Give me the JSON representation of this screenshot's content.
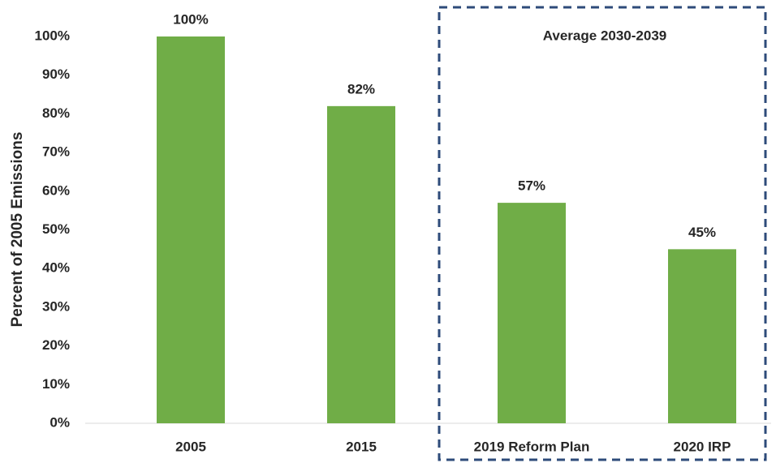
{
  "chart_data": {
    "type": "bar",
    "y_axis_label": "Percent of 2005 Emissions",
    "annotation": "Average 2030-2039",
    "categories": [
      "2005",
      "2015",
      "2019 Reform Plan",
      "2020 IRP"
    ],
    "values": [
      100,
      82,
      57,
      45
    ],
    "value_labels": [
      "100%",
      "82%",
      "57%",
      "45%"
    ],
    "color": "#70ad47",
    "ylim": [
      0,
      100
    ],
    "yticks": [
      {
        "value": 0,
        "label": "0%"
      },
      {
        "value": 10,
        "label": "10%"
      },
      {
        "value": 20,
        "label": "20%"
      },
      {
        "value": 30,
        "label": "30%"
      },
      {
        "value": 40,
        "label": "40%"
      },
      {
        "value": 50,
        "label": "50%"
      },
      {
        "value": 60,
        "label": "60%"
      },
      {
        "value": 70,
        "label": "70%"
      },
      {
        "value": 80,
        "label": "80%"
      },
      {
        "value": 90,
        "label": "90%"
      },
      {
        "value": 100,
        "label": "100%"
      }
    ],
    "grid": false
  }
}
